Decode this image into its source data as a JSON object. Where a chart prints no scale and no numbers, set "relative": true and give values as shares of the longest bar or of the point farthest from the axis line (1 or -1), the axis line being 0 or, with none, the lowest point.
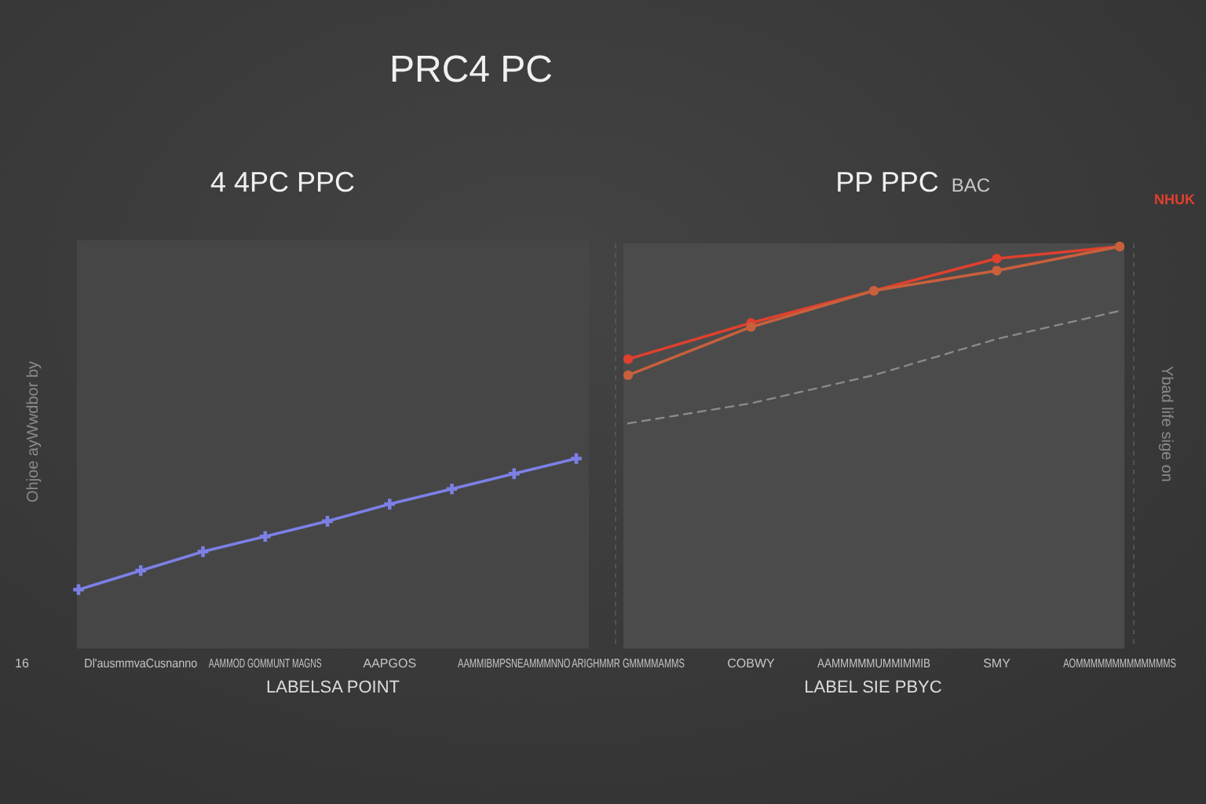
{
  "chart_data": [
    {
      "type": "line",
      "title": "PRC4 PC",
      "subtitle": "4 4PC  PPC",
      "xlabel": "LABELSA POINT",
      "ylabel": "Ohjoe ayWwdbor by",
      "annotations": [
        "16"
      ],
      "categories": [
        null,
        "Dl'ausmmvaCusnanno",
        null,
        "AAMMOD GOMMUNT MAGNS",
        null,
        "AAPGOS",
        null,
        "AAMMIBMPSNEAMMMNNO",
        null
      ],
      "relative": true,
      "marker": "cross",
      "series": [
        {
          "color": "#7c80e6",
          "values": [
            0.31,
            0.41,
            0.51,
            0.59,
            0.67,
            0.76,
            0.84,
            0.92,
            1
          ]
        }
      ]
    },
    {
      "type": "line",
      "title": "PP  PPC",
      "subtitle": "BAC",
      "xlabel": "LABEL SIE PBYC",
      "ylabel": "Ybad life sige on",
      "categories": [
        "ARIGHMMR GMMMMAMMS",
        "COBWY",
        "AAMMMMMUMMIMMIB",
        "SMY",
        "AOMMMMMMMMMMMMMS"
      ],
      "relative": true,
      "legend": "top right",
      "marker": "circle",
      "series": [
        {
          "name": "NHUK",
          "color": "#e0402e",
          "values": [
            0.72,
            0.81,
            0.89,
            0.97,
            1
          ]
        },
        {
          "color": "#c8603c",
          "values": [
            0.68,
            0.8,
            0.89,
            0.94,
            1
          ]
        },
        {
          "color": "#8a8a8a",
          "marker": "none",
          "line_style": "dashed",
          "values": [
            0.56,
            0.61,
            0.68,
            0.77,
            0.84
          ]
        }
      ]
    }
  ]
}
